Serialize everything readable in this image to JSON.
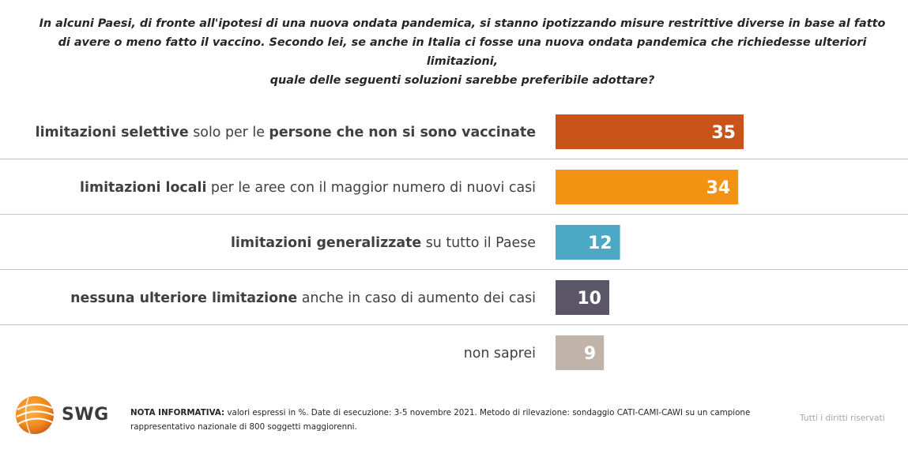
{
  "question": {
    "lines": [
      "In alcuni Paesi, di fronte all'ipotesi di una nuova ondata pandemica, si stanno ipotizzando misure restrittive diverse in base al fatto",
      "di avere o meno fatto il vaccino. Secondo lei, se anche in Italia ci fosse una nuova ondata pandemica che richiedesse ulteriori limitazioni,",
      "quale delle seguenti soluzioni sarebbe preferibile adottare?"
    ]
  },
  "chart_data": {
    "type": "bar",
    "orientation": "horizontal",
    "unit": "%",
    "categories": [
      "limitazioni selettive solo per le persone che non si sono vaccinate",
      "limitazioni locali per le aree con il maggior numero di nuovi casi",
      "limitazioni generalizzate su tutto il Paese",
      "nessuna ulteriore limitazione anche in caso di aumento dei casi",
      "non saprei"
    ],
    "category_parts": [
      [
        {
          "t": "limitazioni selettive",
          "b": true
        },
        {
          "t": " solo per le ",
          "b": false
        },
        {
          "t": "persone che non si sono vaccinate",
          "b": true
        }
      ],
      [
        {
          "t": "limitazioni locali",
          "b": true
        },
        {
          "t": " per le aree con il maggior numero di nuovi casi",
          "b": false
        }
      ],
      [
        {
          "t": "limitazioni generalizzate",
          "b": true
        },
        {
          "t": " su tutto il Paese",
          "b": false
        }
      ],
      [
        {
          "t": "nessuna ulteriore limitazione",
          "b": true
        },
        {
          "t": " anche in caso di aumento dei casi",
          "b": false
        }
      ],
      [
        {
          "t": "non saprei",
          "b": false
        }
      ]
    ],
    "values": [
      35,
      34,
      12,
      10,
      9
    ],
    "colors": [
      "#c9541b",
      "#f39314",
      "#4ba9c6",
      "#5b5568",
      "#bfb3aa"
    ],
    "xlim": [
      0,
      100
    ],
    "grid": false
  },
  "footer": {
    "logo_text": "SWG",
    "note_label": "NOTA INFORMATIVA:",
    "note_text": " valori espressi in %. Date di esecuzione: 3-5 novembre 2021. Metodo di rilevazione: sondaggio CATI-CAMI-CAWI su un campione rappresentativo nazionale di 800 soggetti maggiorenni.",
    "rights": "Tutti i diritti riservati"
  }
}
